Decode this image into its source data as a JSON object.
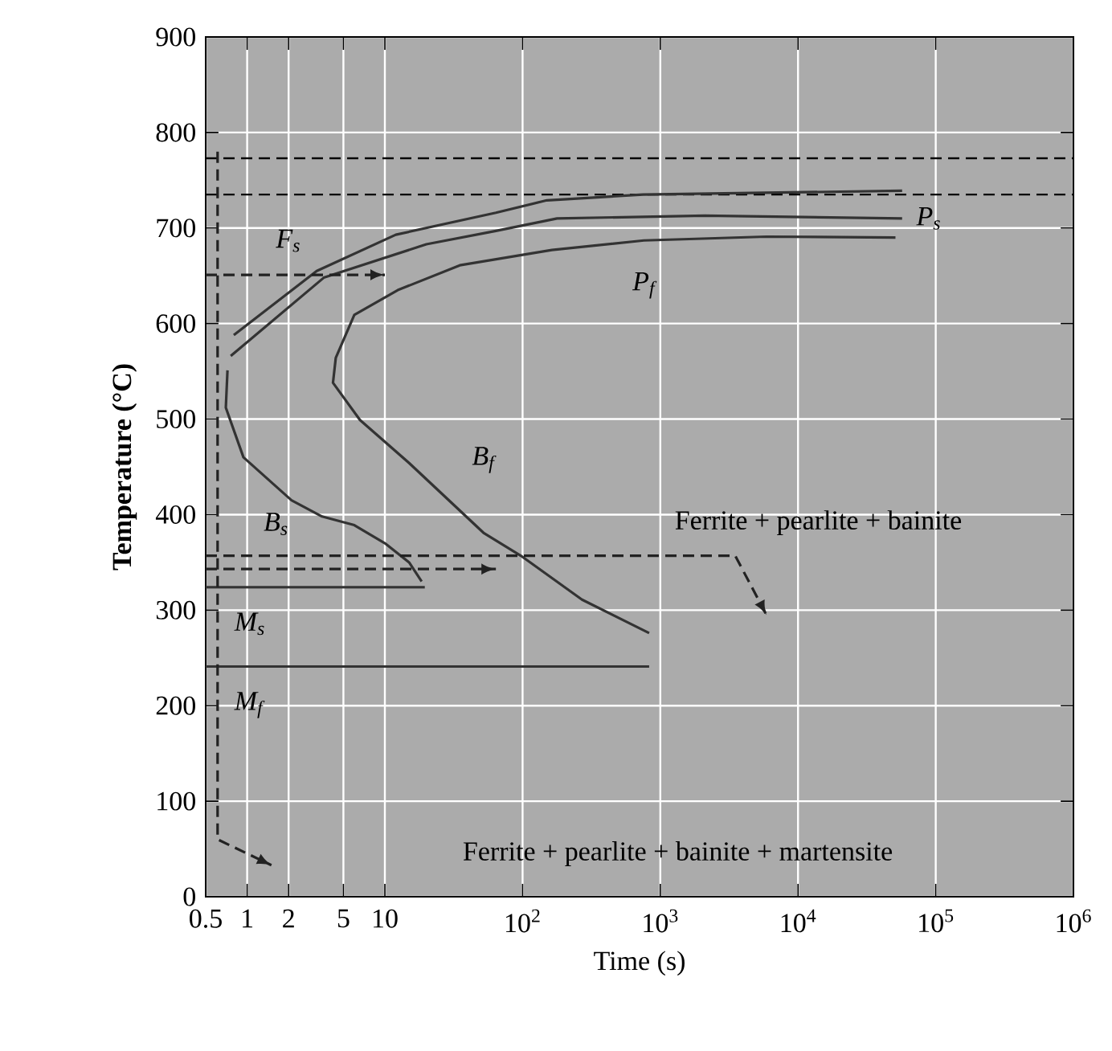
{
  "chart_data": {
    "type": "line",
    "xlabel": "Time (s)",
    "ylabel": "Temperature (°C)",
    "log": "x",
    "grid": true,
    "xlim": [
      0.5,
      1000000
    ],
    "ylim": [
      0,
      900
    ],
    "xticks": [
      0.5,
      1,
      2,
      5,
      10,
      {
        "value": 100,
        "label": "10$^{2}$"
      },
      {
        "value": 1000,
        "label": "10$^{3}$"
      },
      {
        "value": 10000,
        "label": "10$^{4}$"
      },
      {
        "value": 100000,
        "label": "10$^{5}$"
      },
      {
        "value": 1000000,
        "label": "10$^{6}$"
      }
    ],
    "yticks": [
      0,
      100,
      200,
      300,
      400,
      500,
      600,
      700,
      800,
      900
    ],
    "line_style": "solid",
    "series": [
      {
        "name": "F$_{s}$",
        "color": "#333333",
        "x": [
          0.8,
          3.2,
          12,
          64,
          150,
          750,
          57000
        ],
        "values": [
          588,
          655,
          693,
          716,
          729,
          735,
          739
        ]
      },
      {
        "name": "P$_{s}$",
        "color": "#333333",
        "x": [
          0.76,
          3.6,
          20,
          64,
          178,
          2100,
          57000
        ],
        "values": [
          566,
          648,
          683,
          697,
          710,
          713,
          710
        ]
      },
      {
        "name": "P$_{f}$",
        "color": "#333333",
        "x": [
          830,
          270,
          97,
          52,
          15,
          6.6,
          4.2,
          4.4,
          6.0,
          12.4,
          35,
          163,
          760,
          5900,
          51000
        ],
        "values": [
          276,
          311,
          357,
          381,
          454,
          499,
          538,
          564,
          609,
          635,
          661,
          677,
          687,
          691,
          690
        ]
      },
      {
        "name": "B$_{s}$",
        "color": "#333333",
        "x": [
          0.72,
          0.7,
          0.94,
          2.1,
          3.5,
          6.0,
          10,
          15,
          18.5
        ],
        "values": [
          551,
          512,
          460,
          415,
          398,
          389,
          370,
          350,
          330
        ]
      },
      {
        "name": "M$_{s}$",
        "color": "#333333",
        "x": [
          0.5,
          19.5
        ],
        "values": [
          324,
          324
        ]
      },
      {
        "name": "M$_{f}$",
        "color": "#333333",
        "x": [
          0.5,
          830
        ],
        "values": [
          241,
          241
        ]
      },
      {
        "color": "#222222",
        "line_style": "dashed",
        "x": [
          0.61,
          0.61,
          1.5
        ],
        "values": [
          780,
          60,
          33
        ]
      },
      {
        "color": "#222222",
        "line_style": "dashed",
        "x": [
          0.5,
          10
        ],
        "values": [
          651,
          651
        ]
      },
      {
        "color": "#222222",
        "line_style": "dashed",
        "x": [
          0.5,
          3500,
          5900
        ],
        "values": [
          357,
          357,
          295
        ]
      },
      {
        "color": "#222222",
        "line_style": "dashed",
        "x": [
          0.5,
          64
        ],
        "values": [
          343,
          343
        ]
      }
    ],
    "ref_lines": [
      {
        "axis": "y",
        "value": 773,
        "line_style": "dashed"
      },
      {
        "axis": "y",
        "value": 735,
        "line_style": "dashed"
      }
    ],
    "annotations": [
      "Ferrite + pearlite + bainite",
      "Ferrite + pearlite + bainite + martensite",
      "B$_{f}$"
    ]
  }
}
